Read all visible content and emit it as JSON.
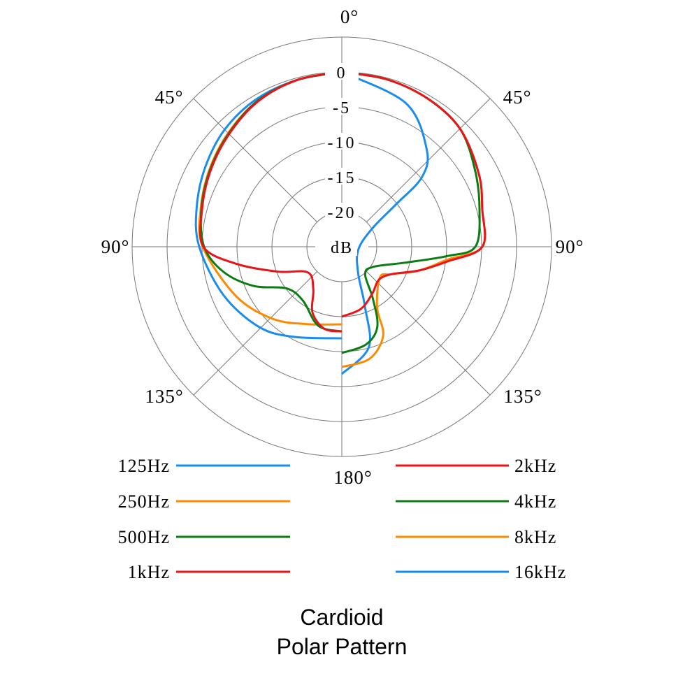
{
  "chart_data": {
    "type": "polar-line",
    "title": [
      "Cardioid",
      "Polar Pattern"
    ],
    "radial_unit_label": "dB",
    "radial_ticks": [
      "0",
      "-5",
      "-10",
      "-15",
      "-20"
    ],
    "radial_range_db": [
      -25,
      5
    ],
    "angle_labels": [
      {
        "text": "0°",
        "angle": 0,
        "side": "center"
      },
      {
        "text": "45°",
        "angle": 45,
        "side": "left"
      },
      {
        "text": "45°",
        "angle": 45,
        "side": "right"
      },
      {
        "text": "90°",
        "angle": 90,
        "side": "left"
      },
      {
        "text": "90°",
        "angle": 90,
        "side": "right"
      },
      {
        "text": "135°",
        "angle": 135,
        "side": "left"
      },
      {
        "text": "135°",
        "angle": 135,
        "side": "right"
      },
      {
        "text": "180°",
        "angle": 180,
        "side": "center"
      }
    ],
    "grid": true,
    "legend_placement": "bottom",
    "series": [
      {
        "name": "125Hz",
        "side": "left",
        "color": "#1a8cf0",
        "angles": [
          0,
          15,
          30,
          45,
          60,
          75,
          90,
          112,
          134,
          152,
          180
        ],
        "db": [
          0,
          -0.3,
          -0.6,
          -1.3,
          -2.4,
          -3.5,
          -4.6,
          -6.7,
          -8.5,
          -10.4,
          -11.9
        ]
      },
      {
        "name": "250Hz",
        "side": "left",
        "color": "#ff8a00",
        "angles": [
          0,
          15,
          30,
          45,
          60,
          75,
          90,
          115,
          136,
          155,
          180
        ],
        "db": [
          0,
          -0.3,
          -0.9,
          -2.0,
          -3.1,
          -4.1,
          -5.1,
          -8.3,
          -10.7,
          -12.8,
          -13.9
        ]
      },
      {
        "name": "500Hz",
        "side": "left",
        "color": "#0a7d12",
        "angles": [
          0,
          15,
          30,
          45,
          60,
          75,
          90,
          102,
          114,
          127,
          144,
          160,
          168,
          180
        ],
        "db": [
          0,
          -0.3,
          -0.9,
          -2.1,
          -3.2,
          -4.2,
          -5.3,
          -7.7,
          -11.2,
          -15.1,
          -15.5,
          -13.6,
          -13.0,
          -12.9
        ]
      },
      {
        "name": "1kHz",
        "side": "left",
        "color": "#e8141a",
        "angles": [
          0,
          15,
          30,
          45,
          60,
          75,
          90,
          99,
          111,
          127,
          146,
          156,
          168,
          180
        ],
        "db": [
          0,
          -0.3,
          -1.0,
          -2.2,
          -3.3,
          -4.3,
          -5.2,
          -9.6,
          -15.1,
          -18.9,
          -17.7,
          -14.7,
          -13.0,
          -12.9
        ]
      },
      {
        "name": "16kHz",
        "side": "right",
        "color": "#1a8cf0",
        "angles": [
          0,
          24,
          41,
          49,
          52,
          59,
          100,
          148,
          159,
          165,
          180
        ],
        "db": [
          0,
          -2.5,
          -6.5,
          -9.8,
          -15.2,
          -19.9,
          -22.6,
          -20.6,
          -15.7,
          -10.1,
          -6.8
        ]
      },
      {
        "name": "8kHz",
        "side": "right",
        "color": "#ff8a00",
        "angles": [
          0,
          15,
          30,
          45,
          62,
          75,
          90,
          97,
          107,
          119,
          129,
          150,
          155,
          166,
          180
        ],
        "db": [
          0,
          -0.2,
          -0.5,
          -1.1,
          -2.8,
          -4.2,
          -4.9,
          -9.8,
          -13.4,
          -16.9,
          -18.0,
          -14.9,
          -11.0,
          -8.5,
          -7.8
        ]
      },
      {
        "name": "4kHz",
        "side": "right",
        "color": "#0a7d12",
        "angles": [
          0,
          15,
          30,
          45,
          60,
          75,
          90,
          95,
          104,
          123,
          140,
          149,
          156,
          166,
          180
        ],
        "db": [
          0,
          -0.2,
          -0.5,
          -1.1,
          -3.0,
          -4.6,
          -5.9,
          -9.8,
          -15.6,
          -19.7,
          -19.8,
          -16.4,
          -12.5,
          -10.6,
          -9.8
        ]
      },
      {
        "name": "2kHz",
        "side": "right",
        "color": "#e8141a",
        "angles": [
          0,
          15,
          30,
          45,
          62,
          75,
          90,
          98,
          107,
          119,
          132,
          147,
          163,
          180
        ],
        "db": [
          0,
          -0.2,
          -0.5,
          -1.1,
          -2.8,
          -4.2,
          -4.9,
          -9.8,
          -13.4,
          -16.9,
          -17.9,
          -17.0,
          -15.7,
          -15.0
        ]
      }
    ],
    "legend": {
      "left": [
        "125Hz",
        "250Hz",
        "500Hz",
        "1kHz"
      ],
      "right": [
        "2kHz",
        "4kHz",
        "8kHz",
        "16kHz"
      ]
    }
  }
}
